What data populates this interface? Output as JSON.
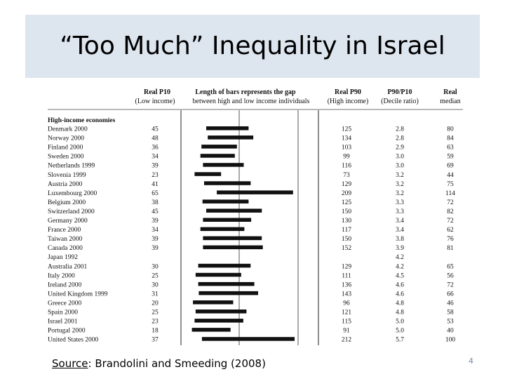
{
  "slide": {
    "title": "“Too Much” Inequality in Israel",
    "source_label": "Source",
    "source_text": ": Brandolini and Smeeding (2008)",
    "page_number": "4"
  },
  "chart_data": {
    "type": "table",
    "headers": {
      "p10": [
        "Real P10",
        "(Low income)"
      ],
      "bars": [
        "Length of bars represents the gap",
        "between high and low income individuals"
      ],
      "p90": [
        "Real P90",
        "(High income)"
      ],
      "ratio": [
        "P90/P10",
        "(Decile ratio)"
      ],
      "median": [
        "Real",
        "median"
      ]
    },
    "group_label": "High-income economies",
    "rows": [
      {
        "country": "Denmark 2000",
        "p10": 45,
        "p90": 125,
        "ratio": "2.8",
        "median": 80
      },
      {
        "country": "Norway 2000",
        "p10": 48,
        "p90": 134,
        "ratio": "2.8",
        "median": 84
      },
      {
        "country": "Finland 2000",
        "p10": 36,
        "p90": 103,
        "ratio": "2.9",
        "median": 63
      },
      {
        "country": "Sweden 2000",
        "p10": 34,
        "p90": 99,
        "ratio": "3.0",
        "median": 59
      },
      {
        "country": "Netherlands 1999",
        "p10": 39,
        "p90": 116,
        "ratio": "3.0",
        "median": 69
      },
      {
        "country": "Slovenia 1999",
        "p10": 23,
        "p90": 73,
        "ratio": "3.2",
        "median": 44
      },
      {
        "country": "Austria 2000",
        "p10": 41,
        "p90": 129,
        "ratio": "3.2",
        "median": 75
      },
      {
        "country": "Luxembourg 2000",
        "p10": 65,
        "p90": 209,
        "ratio": "3.2",
        "median": 114
      },
      {
        "country": "Belgium 2000",
        "p10": 38,
        "p90": 125,
        "ratio": "3.3",
        "median": 72
      },
      {
        "country": "Switzerland 2000",
        "p10": 45,
        "p90": 150,
        "ratio": "3.3",
        "median": 82
      },
      {
        "country": "Germany 2000",
        "p10": 39,
        "p90": 130,
        "ratio": "3.4",
        "median": 72
      },
      {
        "country": "France 2000",
        "p10": 34,
        "p90": 117,
        "ratio": "3.4",
        "median": 62
      },
      {
        "country": "Taiwan 2000",
        "p10": 39,
        "p90": 150,
        "ratio": "3.8",
        "median": 76
      },
      {
        "country": "Canada 2000",
        "p10": 39,
        "p90": 152,
        "ratio": "3.9",
        "median": 81
      },
      {
        "country": "Japan 1992",
        "p10": null,
        "p90": null,
        "ratio": "4.2",
        "median": null
      },
      {
        "country": "Australia 2001",
        "p10": 30,
        "p90": 129,
        "ratio": "4.2",
        "median": 65
      },
      {
        "country": "Italy 2000",
        "p10": 25,
        "p90": 111,
        "ratio": "4.5",
        "median": 56
      },
      {
        "country": "Ireland 2000",
        "p10": 30,
        "p90": 136,
        "ratio": "4.6",
        "median": 72
      },
      {
        "country": "United Kingdom 1999",
        "p10": 31,
        "p90": 143,
        "ratio": "4.6",
        "median": 66
      },
      {
        "country": "Greece 2000",
        "p10": 20,
        "p90": 96,
        "ratio": "4.8",
        "median": 46
      },
      {
        "country": "Spain 2000",
        "p10": 25,
        "p90": 121,
        "ratio": "4.8",
        "median": 58
      },
      {
        "country": "Israel 2001",
        "p10": 23,
        "p90": 115,
        "ratio": "5.0",
        "median": 53
      },
      {
        "country": "Portugal 2000",
        "p10": 18,
        "p90": 91,
        "ratio": "5.0",
        "median": 40
      },
      {
        "country": "United States 2000",
        "p10": 37,
        "p90": 212,
        "ratio": "5.7",
        "median": 100
      }
    ]
  }
}
